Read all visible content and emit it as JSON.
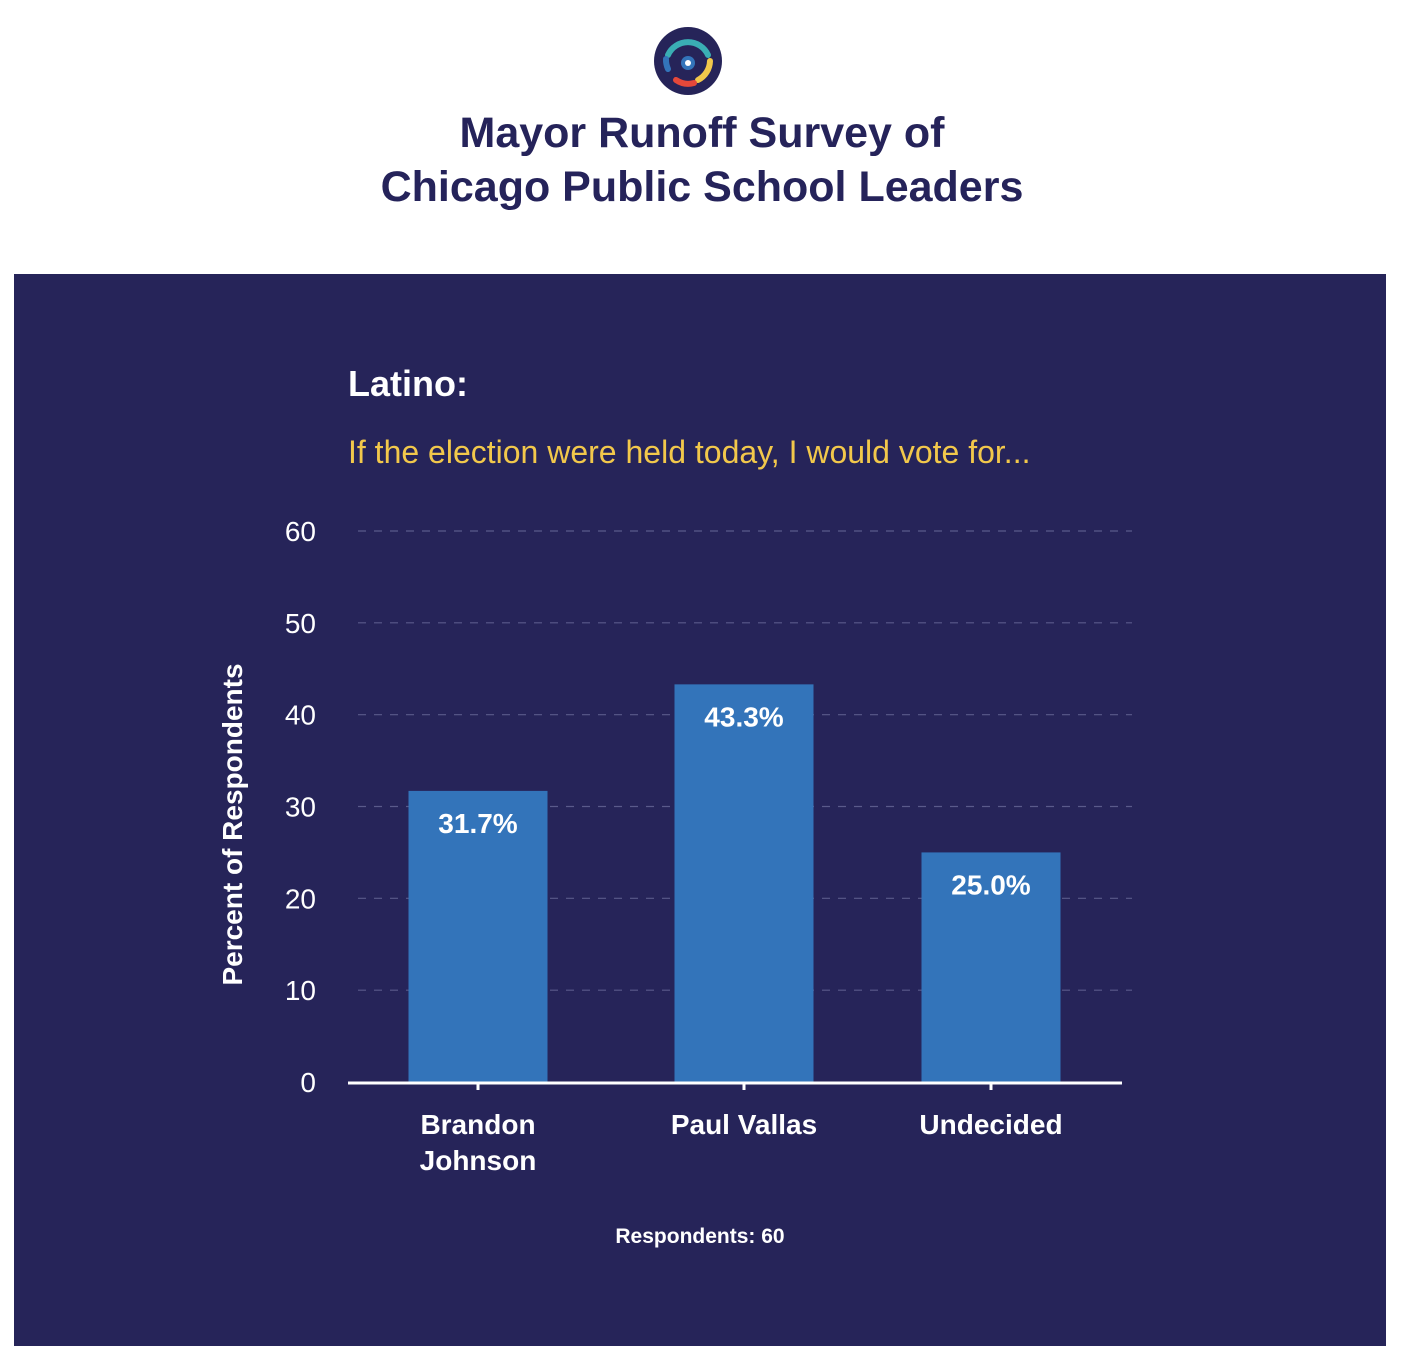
{
  "header": {
    "title_line1": "Mayor Runoff Survey of",
    "title_line2": "Chicago Public School Leaders"
  },
  "colors": {
    "panel_bg": "#262459",
    "bar": "#3374ba",
    "title": "#25235a",
    "subtitle": "#f2c84b",
    "text": "#ffffff",
    "grid": "#5a5a8a"
  },
  "chart_data": {
    "type": "bar",
    "title": "Latino:",
    "subtitle": "If the election were held today, I would vote for...",
    "ylabel": "Percent of Respondents",
    "xlabel": "",
    "categories": [
      [
        "Brandon",
        "Johnson"
      ],
      [
        "Paul Vallas"
      ],
      [
        "Undecided"
      ]
    ],
    "values": [
      31.7,
      43.3,
      25.0
    ],
    "data_labels": [
      "31.7%",
      "43.3%",
      "25.0%"
    ],
    "ylim": [
      0,
      60
    ],
    "yticks": [
      0,
      10,
      20,
      30,
      40,
      50,
      60
    ],
    "grid": true,
    "grid_style": "dashed",
    "footnote": "Respondents: 60"
  }
}
